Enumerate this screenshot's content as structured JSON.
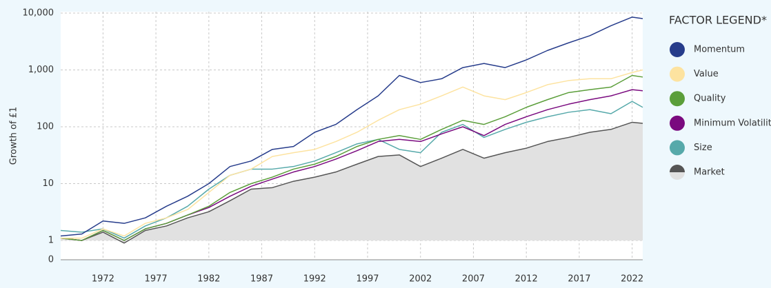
{
  "chart_data": {
    "type": "line",
    "ylabel": "Growth of £1",
    "legend_title": "FACTOR LEGEND*",
    "log_scale": true,
    "grid": true,
    "legend_position": "right",
    "area_series": "Market",
    "area_color": "#e1e1e1",
    "x": [
      1968,
      1970,
      1972,
      1974,
      1976,
      1978,
      1980,
      1982,
      1984,
      1986,
      1988,
      1990,
      1992,
      1994,
      1996,
      1998,
      2000,
      2002,
      2004,
      2006,
      2008,
      2010,
      2012,
      2014,
      2016,
      2018,
      2020,
      2022,
      2023
    ],
    "xlim": [
      1968,
      2023
    ],
    "xticks": [
      1972,
      1977,
      1982,
      1987,
      1992,
      1997,
      2002,
      2007,
      2012,
      2017,
      2022
    ],
    "ylim": [
      1,
      10000
    ],
    "yticks": [
      0,
      1,
      10,
      100,
      {
        "value": 1000,
        "label": "1,000"
      },
      {
        "value": 10000,
        "label": "10,000"
      }
    ],
    "series": [
      {
        "name": "Momentum",
        "color": "#263c8b",
        "values": [
          1.2,
          1.3,
          2.2,
          2.0,
          2.5,
          4,
          6,
          10,
          20,
          25,
          40,
          45,
          80,
          110,
          200,
          350,
          800,
          600,
          700,
          1100,
          1300,
          1100,
          1500,
          2200,
          3000,
          4000,
          6000,
          8500,
          8000
        ]
      },
      {
        "name": "Value",
        "color": "#fde3a0",
        "values": [
          1.1,
          1.1,
          1.6,
          1.2,
          2,
          2.5,
          3.5,
          7,
          14,
          18,
          30,
          35,
          40,
          55,
          80,
          130,
          200,
          250,
          350,
          500,
          350,
          300,
          400,
          550,
          650,
          700,
          700,
          900,
          1000
        ]
      },
      {
        "name": "Quality",
        "color": "#5b9e3a",
        "values": [
          1.1,
          1.0,
          1.5,
          1.0,
          1.6,
          2,
          2.8,
          4,
          7,
          10,
          13,
          18,
          22,
          30,
          45,
          60,
          70,
          60,
          90,
          130,
          110,
          150,
          220,
          300,
          400,
          450,
          500,
          800,
          750
        ]
      },
      {
        "name": "Minimum Volatility",
        "color": "#7a0a7f",
        "values": [
          1.1,
          1.0,
          1.5,
          1.0,
          1.6,
          2,
          2.8,
          3.8,
          6,
          9,
          12,
          16,
          20,
          27,
          38,
          55,
          60,
          55,
          75,
          100,
          70,
          110,
          150,
          200,
          250,
          300,
          350,
          450,
          430
        ]
      },
      {
        "name": "Size",
        "color": "#56a9aa",
        "values": [
          1.5,
          1.4,
          1.6,
          1.1,
          1.8,
          2.5,
          4,
          8,
          14,
          18,
          18,
          20,
          25,
          35,
          50,
          60,
          40,
          35,
          80,
          110,
          65,
          90,
          120,
          150,
          180,
          200,
          170,
          280,
          220
        ]
      },
      {
        "name": "Market",
        "color": "#555555",
        "values": [
          1.1,
          1.0,
          1.4,
          0.9,
          1.5,
          1.8,
          2.5,
          3.2,
          5,
          8,
          8.5,
          11,
          13,
          16,
          22,
          30,
          32,
          20,
          28,
          40,
          28,
          35,
          42,
          55,
          65,
          80,
          90,
          120,
          115
        ]
      }
    ]
  }
}
